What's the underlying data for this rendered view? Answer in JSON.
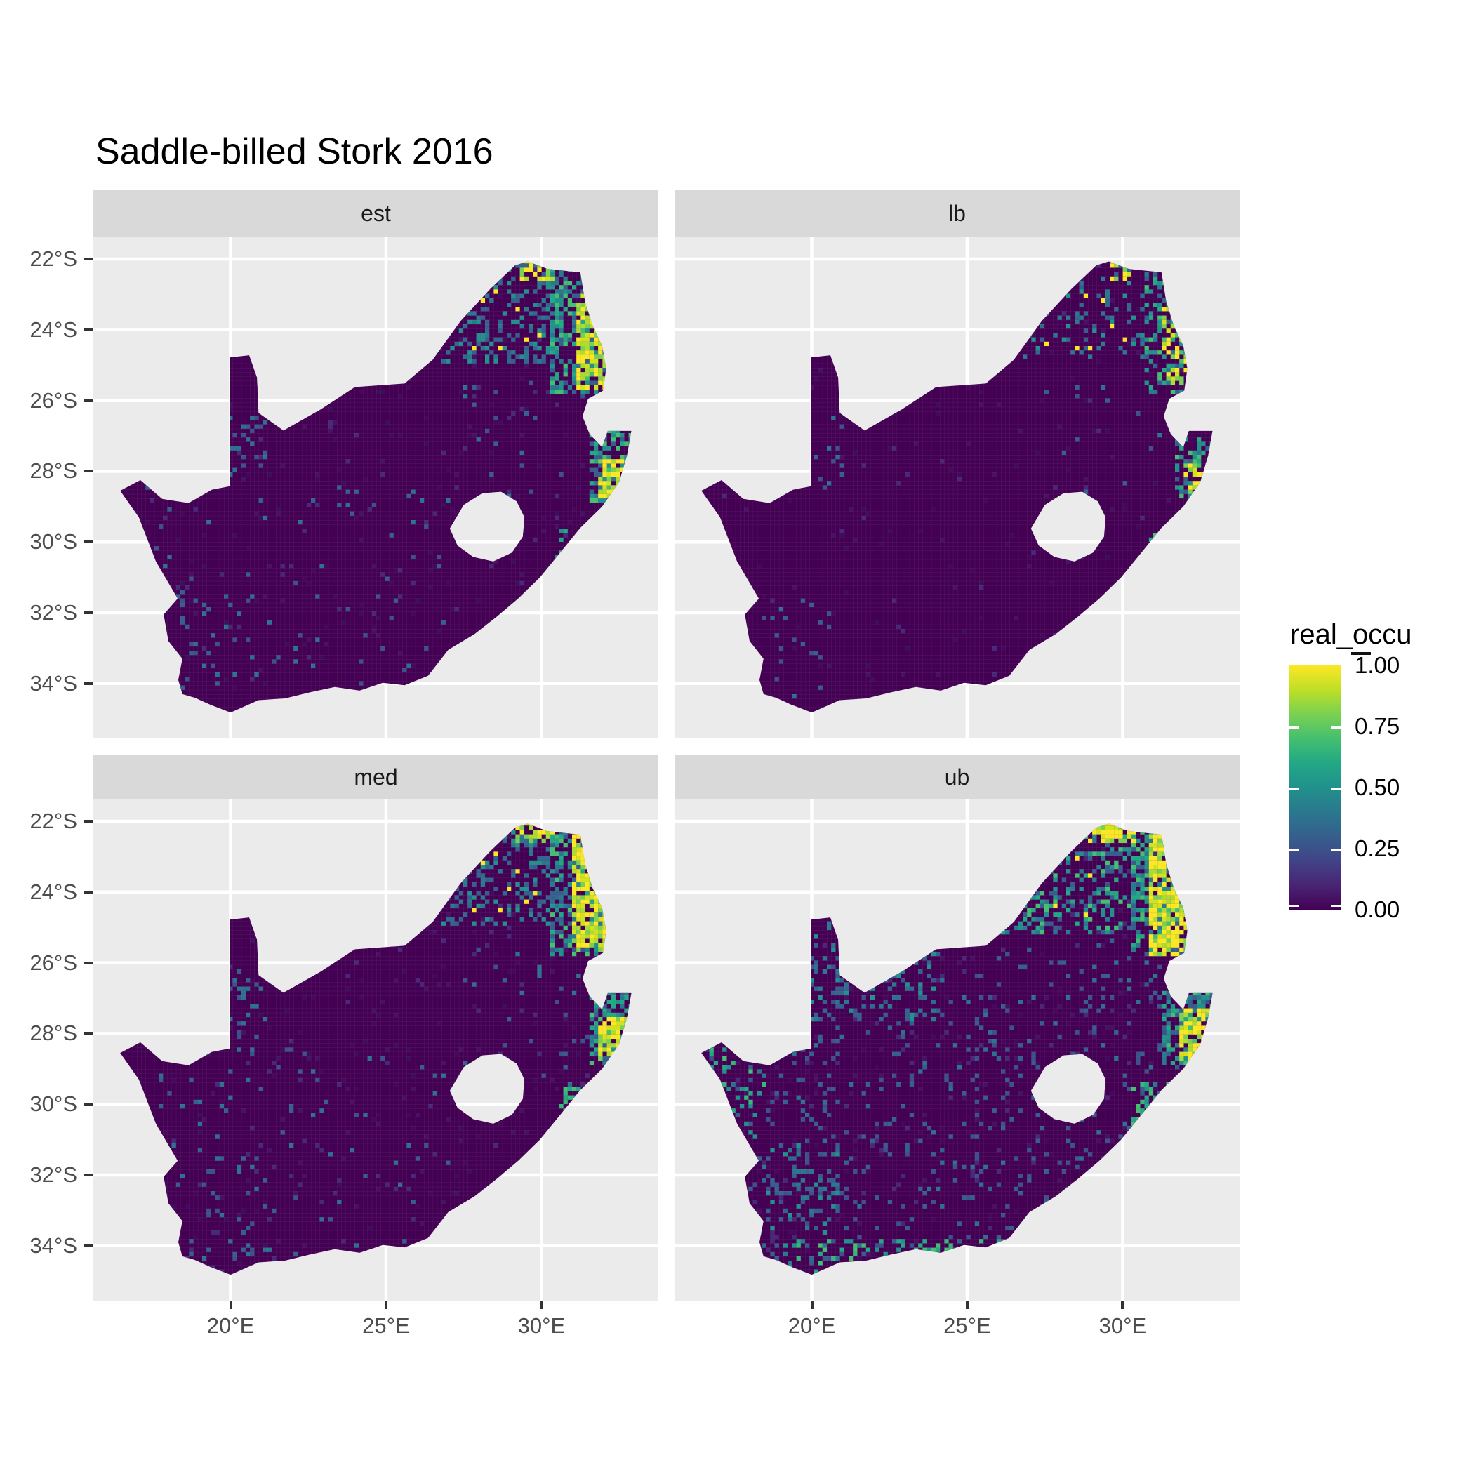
{
  "title": "Saddle-billed Stork 2016",
  "facets": [
    {
      "label": "est"
    },
    {
      "label": "lb"
    },
    {
      "label": "med"
    },
    {
      "label": "ub"
    }
  ],
  "axes": {
    "y_ticks": [
      "22°S",
      "24°S",
      "26°S",
      "28°S",
      "30°S",
      "32°S",
      "34°S"
    ],
    "x_ticks": [
      "20°E",
      "25°E",
      "30°E"
    ]
  },
  "legend": {
    "title": "real_occu",
    "ticks": [
      "1.00",
      "0.75",
      "0.50",
      "0.25",
      "0.00"
    ]
  },
  "colors": {
    "panel_bg": "#ebebeb",
    "strip_bg": "#d9d9d9",
    "grid": "#ffffff",
    "map_base": "#440154",
    "axis_text": "#4d4d4d",
    "tick_mark": "#333333",
    "cell_line": "rgba(255,255,255,0.09)",
    "viridis": [
      "#440154",
      "#482475",
      "#414487",
      "#355f8d",
      "#2a788e",
      "#21918c",
      "#22a884",
      "#44bf70",
      "#7ad151",
      "#bddf26",
      "#fde725"
    ]
  },
  "chart_data": {
    "type": "heatmap",
    "subtype": "faceted raster occupancy map of South Africa",
    "title": "Saddle-billed Stork 2016",
    "facets": [
      "est",
      "lb",
      "med",
      "ub"
    ],
    "variable": "real_occu",
    "scale": {
      "limits": [
        0,
        1
      ],
      "breaks": [
        0,
        0.25,
        0.5,
        0.75,
        1.0
      ],
      "palette": "viridis",
      "legend_position": "right"
    },
    "x": {
      "unit": "°E",
      "ticks": [
        20,
        25,
        30
      ],
      "range": [
        15.59,
        33.76
      ]
    },
    "y": {
      "unit": "°S",
      "ticks": [
        22,
        24,
        26,
        28,
        30,
        32,
        34
      ],
      "range": [
        21.39,
        35.55
      ]
    },
    "grid": true,
    "raster_cell_deg": 0.15,
    "map": {
      "outline": [
        [
          16.45,
          28.55
        ],
        [
          17.1,
          28.25
        ],
        [
          17.8,
          28.78
        ],
        [
          18.65,
          28.9
        ],
        [
          19.4,
          28.52
        ],
        [
          19.99,
          28.42
        ],
        [
          19.99,
          24.78
        ],
        [
          20.6,
          24.72
        ],
        [
          20.85,
          25.35
        ],
        [
          20.9,
          26.35
        ],
        [
          21.7,
          26.85
        ],
        [
          22.9,
          26.25
        ],
        [
          24.0,
          25.62
        ],
        [
          25.6,
          25.52
        ],
        [
          26.5,
          24.85
        ],
        [
          27.4,
          23.75
        ],
        [
          28.35,
          22.85
        ],
        [
          29.15,
          22.18
        ],
        [
          29.55,
          22.07
        ],
        [
          30.2,
          22.28
        ],
        [
          31.25,
          22.38
        ],
        [
          31.4,
          23.2
        ],
        [
          31.65,
          23.9
        ],
        [
          31.95,
          24.45
        ],
        [
          32.08,
          25.1
        ],
        [
          31.98,
          25.72
        ],
        [
          31.5,
          25.95
        ],
        [
          31.32,
          26.45
        ],
        [
          31.55,
          26.95
        ],
        [
          31.95,
          27.32
        ],
        [
          32.13,
          26.86
        ],
        [
          32.89,
          26.86
        ],
        [
          32.75,
          27.55
        ],
        [
          32.5,
          28.3
        ],
        [
          31.95,
          29.0
        ],
        [
          31.25,
          29.6
        ],
        [
          30.65,
          30.25
        ],
        [
          29.95,
          31.0
        ],
        [
          29.25,
          31.6
        ],
        [
          28.55,
          32.12
        ],
        [
          27.85,
          32.6
        ],
        [
          27.0,
          33.05
        ],
        [
          26.35,
          33.78
        ],
        [
          25.6,
          34.05
        ],
        [
          24.9,
          33.98
        ],
        [
          24.15,
          34.2
        ],
        [
          23.35,
          34.1
        ],
        [
          22.55,
          34.25
        ],
        [
          21.75,
          34.42
        ],
        [
          20.9,
          34.47
        ],
        [
          20.0,
          34.82
        ],
        [
          19.35,
          34.6
        ],
        [
          18.85,
          34.4
        ],
        [
          18.45,
          34.3
        ],
        [
          18.32,
          33.9
        ],
        [
          18.45,
          33.3
        ],
        [
          18.0,
          32.8
        ],
        [
          17.85,
          32.05
        ],
        [
          18.3,
          31.6
        ],
        [
          17.6,
          30.55
        ],
        [
          17.05,
          29.3
        ]
      ],
      "hole": [
        [
          27.05,
          29.62
        ],
        [
          27.5,
          28.95
        ],
        [
          28.1,
          28.62
        ],
        [
          28.7,
          28.58
        ],
        [
          29.2,
          28.85
        ],
        [
          29.45,
          29.3
        ],
        [
          29.4,
          29.85
        ],
        [
          29.05,
          30.3
        ],
        [
          28.45,
          30.55
        ],
        [
          27.8,
          30.42
        ],
        [
          27.3,
          30.1
        ]
      ]
    },
    "palettes": {
      "dark": [
        "#471164",
        "#3d0e5a",
        "#482878",
        "#440154",
        "#440154",
        "#46085c"
      ],
      "dark2": [
        "#46085c",
        "#471164",
        "#3b528b",
        "#440154",
        "#355f8d",
        "#482878"
      ],
      "blue": [
        "#3b528b",
        "#2c728e",
        "#355f8d"
      ],
      "teal": [
        "#2a788e",
        "#21918c",
        "#355f8d",
        "#31688e"
      ],
      "tealgreen": [
        "#21918c",
        "#22a884",
        "#2a788e",
        "#44bf70",
        "#355f8d"
      ],
      "green": [
        "#22a884",
        "#44bf70",
        "#35b779",
        "#21918c"
      ],
      "yellow": [
        "#fde725",
        "#fde725",
        "#d2e21b",
        "#addc30",
        "#7ad151"
      ]
    },
    "hotspots": {
      "est": [
        {
          "b": [
            16.4,
            22.0,
            33.0,
            35.3
          ],
          "d": 0.05,
          "p": "dark"
        },
        {
          "b": [
            26.8,
            22.15,
            30.7,
            24.9
          ],
          "d": 0.28,
          "p": "teal"
        },
        {
          "b": [
            30.4,
            22.25,
            32.15,
            25.75
          ],
          "d": 0.55,
          "p": "tealgreen"
        },
        {
          "b": [
            31.2,
            23.0,
            32.12,
            25.65
          ],
          "d": 0.65,
          "p": "yellow"
        },
        {
          "b": [
            29.2,
            22.1,
            30.35,
            22.55
          ],
          "d": 0.5,
          "p": "yellow"
        },
        {
          "b": [
            31.55,
            26.85,
            32.95,
            28.8
          ],
          "d": 0.5,
          "p": "tealgreen"
        },
        {
          "b": [
            31.95,
            27.75,
            32.85,
            28.65
          ],
          "d": 0.6,
          "p": "yellow"
        },
        {
          "b": [
            30.55,
            29.7,
            31.45,
            30.7
          ],
          "d": 0.28,
          "p": "green"
        },
        {
          "b": [
            19.99,
            26.2,
            21.1,
            28.45
          ],
          "d": 0.15,
          "p": "blue"
        },
        {
          "b": [
            18.5,
            31.5,
            20.7,
            34.45
          ],
          "d": 0.07,
          "p": "blue"
        },
        {
          "b": [
            27.5,
            25.5,
            31.5,
            29.5
          ],
          "d": 0.03,
          "p": "blue"
        },
        {
          "b": [
            17.0,
            28.5,
            27.0,
            34.0
          ],
          "d": 0.02,
          "p": "blue"
        }
      ],
      "lb": [
        {
          "b": [
            16.4,
            22.0,
            33.0,
            35.3
          ],
          "d": 0.04,
          "p": "dark"
        },
        {
          "b": [
            26.8,
            22.2,
            30.7,
            24.8
          ],
          "d": 0.13,
          "p": "teal"
        },
        {
          "b": [
            30.8,
            22.3,
            32.15,
            25.7
          ],
          "d": 0.42,
          "p": "tealgreen"
        },
        {
          "b": [
            31.35,
            23.3,
            32.1,
            25.55
          ],
          "d": 0.42,
          "p": "yellow"
        },
        {
          "b": [
            29.4,
            22.1,
            30.25,
            22.5
          ],
          "d": 0.35,
          "p": "yellow"
        },
        {
          "b": [
            31.7,
            27.1,
            32.9,
            28.7
          ],
          "d": 0.42,
          "p": "tealgreen"
        },
        {
          "b": [
            32.05,
            27.9,
            32.8,
            28.6
          ],
          "d": 0.45,
          "p": "yellow"
        },
        {
          "b": [
            30.6,
            29.8,
            31.4,
            30.6
          ],
          "d": 0.15,
          "p": "green"
        },
        {
          "b": [
            19.99,
            26.3,
            21.05,
            28.4
          ],
          "d": 0.1,
          "p": "blue"
        },
        {
          "b": [
            18.5,
            31.6,
            20.6,
            34.4
          ],
          "d": 0.04,
          "p": "blue"
        },
        {
          "b": [
            27.5,
            25.5,
            31.5,
            29.5
          ],
          "d": 0.02,
          "p": "blue"
        }
      ],
      "med": [
        {
          "b": [
            16.4,
            22.0,
            33.0,
            35.3
          ],
          "d": 0.05,
          "p": "dark"
        },
        {
          "b": [
            26.8,
            22.15,
            30.7,
            24.9
          ],
          "d": 0.3,
          "p": "teal"
        },
        {
          "b": [
            30.4,
            22.25,
            32.15,
            25.75
          ],
          "d": 0.5,
          "p": "tealgreen"
        },
        {
          "b": [
            31.0,
            22.45,
            32.12,
            25.65
          ],
          "d": 0.78,
          "p": "yellow"
        },
        {
          "b": [
            29.2,
            22.1,
            30.4,
            22.6
          ],
          "d": 0.65,
          "p": "yellow"
        },
        {
          "b": [
            31.55,
            26.85,
            32.95,
            28.85
          ],
          "d": 0.55,
          "p": "tealgreen"
        },
        {
          "b": [
            31.9,
            27.55,
            32.9,
            28.7
          ],
          "d": 0.7,
          "p": "yellow"
        },
        {
          "b": [
            30.5,
            29.6,
            31.5,
            30.8
          ],
          "d": 0.3,
          "p": "green"
        },
        {
          "b": [
            19.99,
            26.2,
            21.1,
            28.45
          ],
          "d": 0.16,
          "p": "blue"
        },
        {
          "b": [
            18.5,
            31.5,
            20.7,
            34.45
          ],
          "d": 0.07,
          "p": "blue"
        },
        {
          "b": [
            27.5,
            25.5,
            31.5,
            29.5
          ],
          "d": 0.03,
          "p": "blue"
        },
        {
          "b": [
            17.0,
            28.5,
            27.0,
            34.2
          ],
          "d": 0.025,
          "p": "blue"
        }
      ],
      "ub": [
        {
          "b": [
            16.4,
            22.0,
            33.0,
            35.3
          ],
          "d": 0.09,
          "p": "dark2"
        },
        {
          "b": [
            23.6,
            22.2,
            30.7,
            25.1
          ],
          "d": 0.34,
          "p": "tealgreen"
        },
        {
          "b": [
            20.0,
            24.8,
            24.0,
            27.6
          ],
          "d": 0.2,
          "p": "teal"
        },
        {
          "b": [
            30.4,
            22.25,
            32.15,
            25.75
          ],
          "d": 0.5,
          "p": "tealgreen"
        },
        {
          "b": [
            30.85,
            22.3,
            32.15,
            25.7
          ],
          "d": 0.68,
          "p": "yellow"
        },
        {
          "b": [
            28.9,
            22.1,
            30.4,
            22.6
          ],
          "d": 0.55,
          "p": "yellow"
        },
        {
          "b": [
            31.3,
            26.85,
            32.95,
            28.85
          ],
          "d": 0.55,
          "p": "tealgreen"
        },
        {
          "b": [
            31.85,
            27.3,
            32.9,
            28.75
          ],
          "d": 0.7,
          "p": "yellow"
        },
        {
          "b": [
            30.3,
            29.5,
            31.5,
            30.9
          ],
          "d": 0.35,
          "p": "green"
        },
        {
          "b": [
            16.4,
            28.5,
            18.5,
            31.3
          ],
          "d": 0.18,
          "p": "green"
        },
        {
          "b": [
            18.4,
            31.2,
            20.9,
            34.5
          ],
          "d": 0.15,
          "p": "teal"
        },
        {
          "b": [
            19.3,
            33.9,
            27.5,
            34.7
          ],
          "d": 0.17,
          "p": "green"
        },
        {
          "b": [
            17.5,
            26.0,
            31.5,
            34.3
          ],
          "d": 0.05,
          "p": "blue"
        }
      ]
    },
    "yellow_dots": {
      "est": [
        [
          28.5,
          22.9
        ],
        [
          29.3,
          23.4
        ],
        [
          27.9,
          24.5
        ],
        [
          28.7,
          24.5
        ],
        [
          29.5,
          24.3
        ],
        [
          28.1,
          23.15
        ],
        [
          30.0,
          24.2
        ]
      ],
      "lb": [
        [
          27.9,
          22.8
        ],
        [
          28.8,
          23.1
        ],
        [
          29.35,
          23.2
        ],
        [
          27.6,
          24.35
        ],
        [
          28.55,
          24.55
        ],
        [
          28.95,
          24.55
        ],
        [
          29.7,
          23.95
        ],
        [
          30.1,
          24.3
        ]
      ],
      "med": [
        [
          28.5,
          22.9
        ],
        [
          29.3,
          23.4
        ],
        [
          27.9,
          24.5
        ],
        [
          28.7,
          24.5
        ],
        [
          29.5,
          24.3
        ],
        [
          28.9,
          23.9
        ],
        [
          29.8,
          24.05
        ],
        [
          28.1,
          23.2
        ]
      ],
      "ub": [
        [
          27.7,
          22.7
        ],
        [
          28.5,
          23.05
        ],
        [
          29.0,
          23.5
        ],
        [
          27.9,
          24.4
        ],
        [
          28.8,
          24.6
        ],
        [
          26.9,
          23.3
        ]
      ]
    }
  }
}
